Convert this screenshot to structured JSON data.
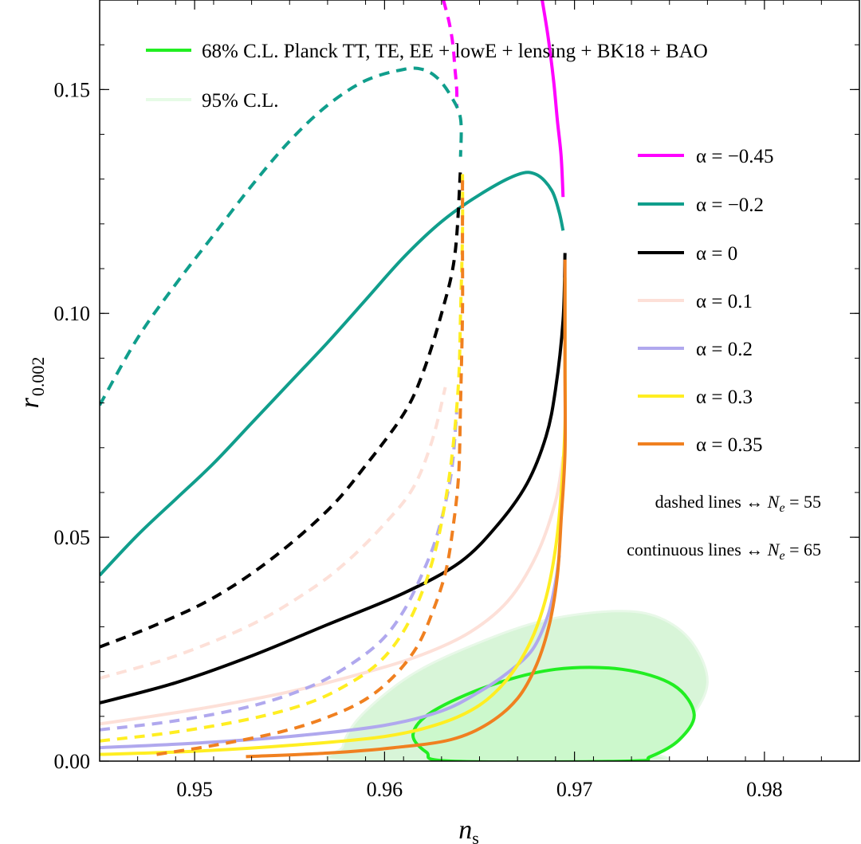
{
  "chart_data": {
    "type": "line",
    "xlabel": "n_s",
    "xlabel_main": "n",
    "xlabel_sub": "s",
    "ylabel": "r_0.002",
    "ylabel_main": "r",
    "ylabel_sub": "0.002",
    "xlim": [
      0.945,
      0.985
    ],
    "ylim": [
      0.0,
      0.17
    ],
    "xticks": [
      0.95,
      0.96,
      0.97,
      0.98
    ],
    "xtick_labels": [
      "0.95",
      "0.96",
      "0.97",
      "0.98"
    ],
    "yticks": [
      0.0,
      0.05,
      0.1,
      0.15
    ],
    "ytick_labels": [
      "0.00",
      "0.05",
      "0.10",
      "0.15"
    ],
    "contours": [
      {
        "name": "95% C.L.",
        "color": "#d8f5d8",
        "stroke": "#e8f8e8",
        "points": [
          [
            0.9583,
            0.0
          ],
          [
            0.9578,
            0.0033
          ],
          [
            0.9588,
            0.0103
          ],
          [
            0.9615,
            0.0195
          ],
          [
            0.965,
            0.0265
          ],
          [
            0.9685,
            0.0315
          ],
          [
            0.9722,
            0.0335
          ],
          [
            0.9745,
            0.032
          ],
          [
            0.9762,
            0.0265
          ],
          [
            0.977,
            0.0175
          ],
          [
            0.976,
            0.009
          ],
          [
            0.9742,
            0.0025
          ],
          [
            0.9737,
            0.0
          ]
        ]
      },
      {
        "name": "68% C.L. Planck TT, TE, EE + lowE + lensing + BK18 + BAO",
        "color": "#ccf8cc",
        "stroke": "#22ee22",
        "points": [
          [
            0.9635,
            0.0
          ],
          [
            0.9622,
            0.002
          ],
          [
            0.9615,
            0.006
          ],
          [
            0.9625,
            0.011
          ],
          [
            0.9655,
            0.0168
          ],
          [
            0.969,
            0.0205
          ],
          [
            0.9725,
            0.0205
          ],
          [
            0.9752,
            0.017
          ],
          [
            0.9763,
            0.0105
          ],
          [
            0.9755,
            0.0047
          ],
          [
            0.974,
            0.001
          ],
          [
            0.9728,
            0.0
          ]
        ]
      }
    ],
    "series": [
      {
        "name": "α = −0.45, N_e = 55",
        "alpha": "−0.45",
        "N_e": 55,
        "style": "dashed",
        "color": "#ff00ff",
        "points": [
          [
            0.9631,
            0.17
          ],
          [
            0.9634,
            0.165
          ],
          [
            0.9636,
            0.16
          ],
          [
            0.9637,
            0.155
          ],
          [
            0.9638,
            0.15
          ],
          [
            0.9638,
            0.146
          ]
        ]
      },
      {
        "name": "α = −0.45, N_e = 65",
        "alpha": "−0.45",
        "N_e": 65,
        "style": "solid",
        "color": "#ff00ff",
        "points": [
          [
            0.9683,
            0.17
          ],
          [
            0.9686,
            0.162
          ],
          [
            0.9689,
            0.152
          ],
          [
            0.9691,
            0.143
          ],
          [
            0.9693,
            0.135
          ],
          [
            0.9694,
            0.126
          ]
        ]
      },
      {
        "name": "α = −0.2, N_e = 55",
        "alpha": "−0.2",
        "N_e": 55,
        "style": "dashed",
        "color": "#109e8c",
        "points": [
          [
            0.945,
            0.0795
          ],
          [
            0.947,
            0.0945
          ],
          [
            0.949,
            0.1065
          ],
          [
            0.951,
            0.1175
          ],
          [
            0.953,
            0.1285
          ],
          [
            0.955,
            0.1385
          ],
          [
            0.957,
            0.1465
          ],
          [
            0.959,
            0.152
          ],
          [
            0.961,
            0.1545
          ],
          [
            0.962,
            0.1545
          ],
          [
            0.9628,
            0.1525
          ],
          [
            0.9635,
            0.1485
          ],
          [
            0.964,
            0.1435
          ],
          [
            0.964,
            0.135
          ]
        ]
      },
      {
        "name": "α = −0.2, N_e = 65",
        "alpha": "−0.2",
        "N_e": 65,
        "style": "solid",
        "color": "#109e8c",
        "points": [
          [
            0.945,
            0.0415
          ],
          [
            0.947,
            0.0505
          ],
          [
            0.949,
            0.0585
          ],
          [
            0.951,
            0.0665
          ],
          [
            0.953,
            0.0755
          ],
          [
            0.955,
            0.0845
          ],
          [
            0.957,
            0.0935
          ],
          [
            0.959,
            0.103
          ],
          [
            0.961,
            0.1125
          ],
          [
            0.963,
            0.1205
          ],
          [
            0.965,
            0.1265
          ],
          [
            0.967,
            0.131
          ],
          [
            0.968,
            0.131
          ],
          [
            0.9688,
            0.1275
          ],
          [
            0.9692,
            0.1225
          ],
          [
            0.9694,
            0.1185
          ]
        ]
      },
      {
        "name": "α = 0, N_e = 55",
        "alpha": "0",
        "N_e": 55,
        "style": "dashed",
        "color": "#000000",
        "points": [
          [
            0.945,
            0.0255
          ],
          [
            0.948,
            0.0305
          ],
          [
            0.951,
            0.0365
          ],
          [
            0.954,
            0.045
          ],
          [
            0.957,
            0.056
          ],
          [
            0.959,
            0.066
          ],
          [
            0.961,
            0.0775
          ],
          [
            0.962,
            0.0865
          ],
          [
            0.963,
            0.1
          ],
          [
            0.9637,
            0.113
          ],
          [
            0.964,
            0.1325
          ]
        ]
      },
      {
        "name": "α = 0, N_e = 65",
        "alpha": "0",
        "N_e": 65,
        "style": "solid",
        "color": "#000000",
        "points": [
          [
            0.945,
            0.013
          ],
          [
            0.949,
            0.0175
          ],
          [
            0.953,
            0.0235
          ],
          [
            0.957,
            0.0305
          ],
          [
            0.961,
            0.0375
          ],
          [
            0.964,
            0.0445
          ],
          [
            0.966,
            0.053
          ],
          [
            0.9675,
            0.062
          ],
          [
            0.9685,
            0.0725
          ],
          [
            0.969,
            0.083
          ],
          [
            0.9694,
            0.0985
          ],
          [
            0.9695,
            0.1135
          ]
        ]
      },
      {
        "name": "α = 0.1, N_e = 55",
        "alpha": "0.1",
        "N_e": 55,
        "style": "dashed",
        "color": "#fde0d8",
        "points": [
          [
            0.945,
            0.0185
          ],
          [
            0.949,
            0.0235
          ],
          [
            0.953,
            0.0305
          ],
          [
            0.956,
            0.038
          ],
          [
            0.958,
            0.0445
          ],
          [
            0.96,
            0.053
          ],
          [
            0.9615,
            0.061
          ],
          [
            0.9625,
            0.0715
          ],
          [
            0.9632,
            0.0835
          ]
        ]
      },
      {
        "name": "α = 0.1, N_e = 65",
        "alpha": "0.1",
        "N_e": 65,
        "style": "solid",
        "color": "#fde0d8",
        "points": [
          [
            0.945,
            0.0083
          ],
          [
            0.95,
            0.0115
          ],
          [
            0.955,
            0.0155
          ],
          [
            0.959,
            0.0198
          ],
          [
            0.962,
            0.0238
          ],
          [
            0.9645,
            0.0288
          ],
          [
            0.9665,
            0.0358
          ],
          [
            0.968,
            0.046
          ],
          [
            0.969,
            0.058
          ],
          [
            0.9694,
            0.068
          ]
        ]
      },
      {
        "name": "α = 0.2, N_e = 55",
        "alpha": "0.2",
        "N_e": 55,
        "style": "dashed",
        "color": "#b0a8ee",
        "points": [
          [
            0.945,
            0.007
          ],
          [
            0.949,
            0.009
          ],
          [
            0.953,
            0.0123
          ],
          [
            0.956,
            0.0165
          ],
          [
            0.958,
            0.021
          ],
          [
            0.9598,
            0.0268
          ],
          [
            0.961,
            0.0335
          ],
          [
            0.962,
            0.042
          ],
          [
            0.9628,
            0.051
          ],
          [
            0.9635,
            0.064
          ],
          [
            0.9638,
            0.078
          ]
        ]
      },
      {
        "name": "α = 0.2, N_e = 65",
        "alpha": "0.2",
        "N_e": 65,
        "style": "solid",
        "color": "#b0a8ee",
        "points": [
          [
            0.945,
            0.003
          ],
          [
            0.95,
            0.004
          ],
          [
            0.955,
            0.0055
          ],
          [
            0.96,
            0.008
          ],
          [
            0.963,
            0.0112
          ],
          [
            0.965,
            0.0155
          ],
          [
            0.9665,
            0.0198
          ],
          [
            0.9678,
            0.025
          ],
          [
            0.9686,
            0.0325
          ],
          [
            0.969,
            0.04
          ],
          [
            0.9692,
            0.046
          ]
        ]
      },
      {
        "name": "α = 0.3, N_e = 55",
        "alpha": "0.3",
        "N_e": 55,
        "style": "dashed",
        "color": "#ffee22",
        "points": [
          [
            0.945,
            0.0045
          ],
          [
            0.949,
            0.0065
          ],
          [
            0.953,
            0.0095
          ],
          [
            0.956,
            0.013
          ],
          [
            0.958,
            0.017
          ],
          [
            0.9597,
            0.022
          ],
          [
            0.961,
            0.029
          ],
          [
            0.962,
            0.038
          ],
          [
            0.9627,
            0.0475
          ],
          [
            0.9632,
            0.058
          ],
          [
            0.9636,
            0.07
          ],
          [
            0.9639,
            0.085
          ],
          [
            0.964,
            0.1
          ],
          [
            0.9641,
            0.118
          ],
          [
            0.9641,
            0.1325
          ]
        ]
      },
      {
        "name": "α = 0.3, N_e = 65",
        "alpha": "0.3",
        "N_e": 65,
        "style": "solid",
        "color": "#ffee22",
        "points": [
          [
            0.945,
            0.0015
          ],
          [
            0.95,
            0.0022
          ],
          [
            0.955,
            0.0035
          ],
          [
            0.96,
            0.0055
          ],
          [
            0.963,
            0.0085
          ],
          [
            0.965,
            0.0125
          ],
          [
            0.9665,
            0.0185
          ],
          [
            0.9677,
            0.0268
          ],
          [
            0.9685,
            0.0365
          ],
          [
            0.969,
            0.0475
          ],
          [
            0.9693,
            0.06
          ],
          [
            0.9695,
            0.075
          ],
          [
            0.9695,
            0.09
          ],
          [
            0.9695,
            0.108
          ]
        ]
      },
      {
        "name": "α = 0.35, N_e = 55",
        "alpha": "0.35",
        "N_e": 55,
        "style": "dashed",
        "color": "#f08020",
        "points": [
          [
            0.948,
            0.0015
          ],
          [
            0.951,
            0.0035
          ],
          [
            0.9545,
            0.0065
          ],
          [
            0.957,
            0.0098
          ],
          [
            0.959,
            0.0138
          ],
          [
            0.9605,
            0.019
          ],
          [
            0.9617,
            0.0255
          ],
          [
            0.9625,
            0.033
          ],
          [
            0.9632,
            0.042
          ],
          [
            0.9636,
            0.052
          ],
          [
            0.9639,
            0.064
          ],
          [
            0.964,
            0.08
          ],
          [
            0.9641,
            0.1
          ],
          [
            0.9641,
            0.115
          ],
          [
            0.9641,
            0.1305
          ]
        ]
      },
      {
        "name": "α = 0.35, N_e = 65",
        "alpha": "0.35",
        "N_e": 65,
        "style": "solid",
        "color": "#f08020",
        "points": [
          [
            0.9527,
            0.001
          ],
          [
            0.957,
            0.0018
          ],
          [
            0.9605,
            0.003
          ],
          [
            0.9635,
            0.0048
          ],
          [
            0.9655,
            0.0085
          ],
          [
            0.967,
            0.014
          ],
          [
            0.968,
            0.0215
          ],
          [
            0.9687,
            0.031
          ],
          [
            0.9691,
            0.0415
          ],
          [
            0.9693,
            0.054
          ],
          [
            0.9695,
            0.069
          ],
          [
            0.9695,
            0.087
          ],
          [
            0.9695,
            0.112
          ]
        ]
      }
    ],
    "legend_cl": [
      {
        "label": "68% C.L. Planck TT, TE, EE + lowE + lensing + BK18 + BAO",
        "color": "#22ee22"
      },
      {
        "label": "95% C.L.",
        "color": "#e6fbe6"
      }
    ],
    "legend_alpha": [
      {
        "label": "α = −0.45",
        "color": "#ff00ff"
      },
      {
        "label": "α = −0.2",
        "color": "#109e8c"
      },
      {
        "label": "α = 0",
        "color": "#000000"
      },
      {
        "label": "α = 0.1",
        "color": "#fde0d8"
      },
      {
        "label": "α = 0.2",
        "color": "#b0a8ee"
      },
      {
        "label": "α = 0.3",
        "color": "#ffee22"
      },
      {
        "label": "α = 0.35",
        "color": "#f08020"
      }
    ],
    "notes": {
      "dashed": "dashed lines ↔ N_e = 55",
      "dashed_prefix": "dashed lines  ↔  ",
      "dashed_N": "N",
      "dashed_sub": "e",
      "dashed_val": " = 55",
      "continuous": "continuous lines ↔ N_e = 65",
      "continuous_prefix": "continuous lines  ↔  ",
      "continuous_N": "N",
      "continuous_sub": "e",
      "continuous_val": " = 65"
    }
  }
}
